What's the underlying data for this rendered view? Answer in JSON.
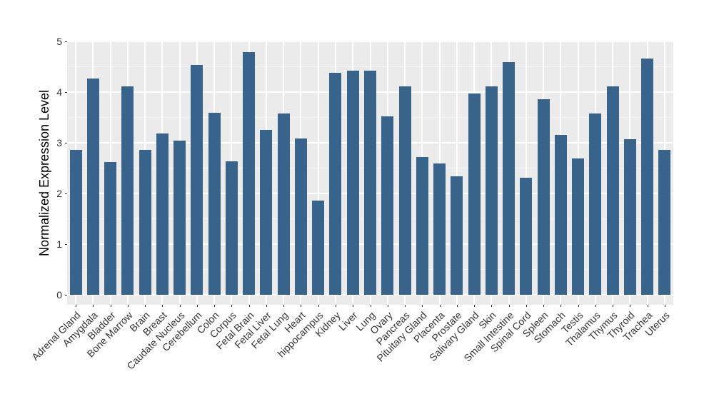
{
  "chart_data": {
    "type": "bar",
    "title": "",
    "xlabel": "",
    "ylabel": "Normalized Expression Level",
    "ylim": [
      0,
      5
    ],
    "yticks": [
      0,
      1,
      2,
      3,
      4,
      5
    ],
    "yticks_minor": [
      0.5,
      1.5,
      2.5,
      3.5,
      4.5
    ],
    "grid": "major and minor horizontal white gridlines, major vertical gridline at each category center",
    "legend_position": "none",
    "bar_color": "#38648C",
    "panel_background": "#EBEBEB",
    "major_grid_color": "#FFFFFF",
    "minor_grid_color": "rgba(255,255,255,0.55)",
    "axis_text_color": "#333333",
    "axis_title_color": "#000000",
    "categories": [
      "Adrenal Gland",
      "Amygdala",
      "Bladder",
      "Bone Marrow",
      "Brain",
      "Breast",
      "Caudate Nucleus",
      "Cerebellum",
      "Colon",
      "Corpus",
      "Fetal Brain",
      "Fetal Liver",
      "Fetal Lung",
      "Heart",
      "hippocampus",
      "Kidney",
      "Liver",
      "Lung",
      "Ovary",
      "Pancreas",
      "Pituitary Gland",
      "Placenta",
      "Prostate",
      "Salivary Gland",
      "Skin",
      "Small Intestine",
      "Spinal Cord",
      "Spleen",
      "Stomach",
      "Testis",
      "Thalamus",
      "Thymus",
      "Thyroid",
      "Trachea",
      "Uterus"
    ],
    "values": [
      2.86,
      4.26,
      2.62,
      4.11,
      2.86,
      3.18,
      3.04,
      4.53,
      3.58,
      2.63,
      4.78,
      3.25,
      3.57,
      3.08,
      1.86,
      4.38,
      4.42,
      4.42,
      3.51,
      4.1,
      2.71,
      2.59,
      2.33,
      3.97,
      4.1,
      4.58,
      2.31,
      3.85,
      3.15,
      2.68,
      3.57,
      4.1,
      3.07,
      4.65,
      2.86
    ]
  }
}
